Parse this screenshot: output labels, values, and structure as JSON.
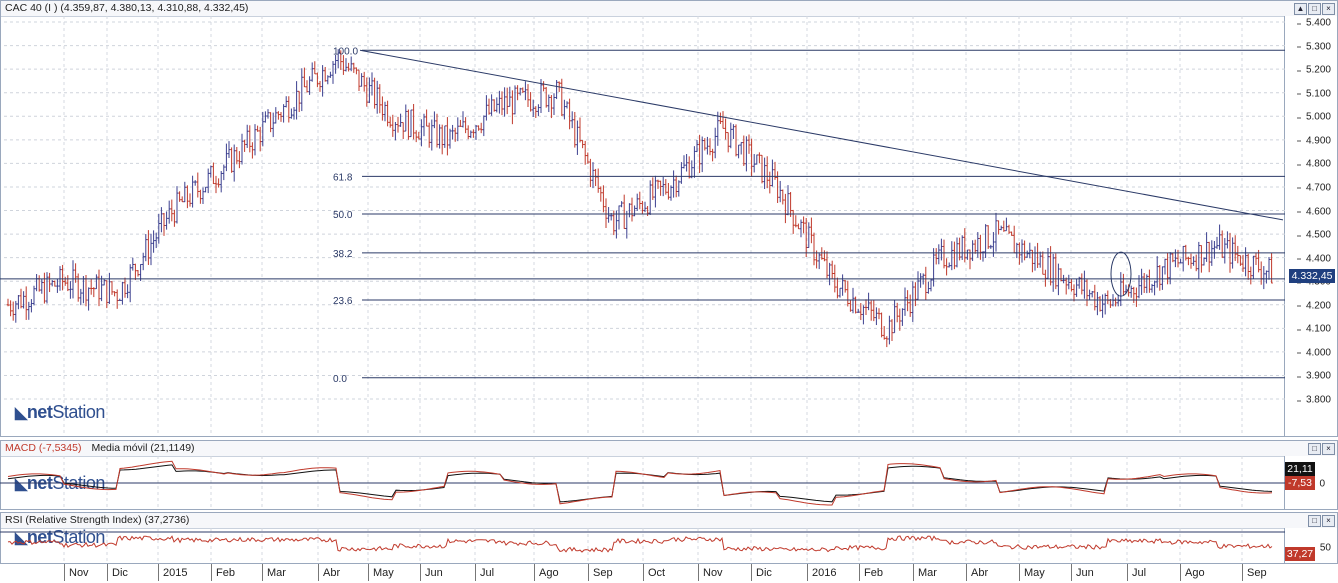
{
  "main": {
    "title": "CAC 40 (I ) (4.359,87, 4.380,13, 4.310,88, 4.332,45)",
    "y_ticks": [
      "5.400",
      "5.300",
      "5.200",
      "5.100",
      "5.000",
      "4.900",
      "4.800",
      "4.700",
      "4.600",
      "4.500",
      "4.400",
      "4.300",
      "4.200",
      "4.100",
      "4.000",
      "3.900",
      "3.800"
    ],
    "price_tag": "4.332,45",
    "fib_levels": [
      "100.0",
      "61.8",
      "50.0",
      "38.2",
      "23.6",
      "0.0"
    ],
    "ctrl_labels": [
      "▲",
      "□",
      "×"
    ]
  },
  "macd": {
    "title": "MACD (-7,5345)",
    "subtitle": "Media móvil (21,1149)",
    "tag_ma": "21,11",
    "tag_macd": "-7,53",
    "zero_label": "0",
    "ctrl_labels": [
      "□",
      "×"
    ]
  },
  "rsi": {
    "title": "RSI (Relative Strength Index) (37,2736)",
    "tag": "37,27",
    "level_label": "50",
    "ctrl_labels": [
      "□",
      "×"
    ]
  },
  "logo": {
    "brand": "net",
    "brand_light": "Station"
  },
  "x_labels": [
    "Nov",
    "Dic",
    "2015",
    "Feb",
    "Mar",
    "Abr",
    "May",
    "Jun",
    "Jul",
    "Ago",
    "Sep",
    "Oct",
    "Nov",
    "Dic",
    "2016",
    "Feb",
    "Mar",
    "Abr",
    "May",
    "Jun",
    "Jul",
    "Ago",
    "Sep"
  ],
  "colors": {
    "up": "#3b3f8f",
    "down": "#c0392b",
    "line": "#2b3a67",
    "tag_price": "#1f3f7f",
    "tag_ma": "#111111",
    "tag_macd": "#c0392b",
    "tag_rsi": "#c0392b"
  },
  "chart_data": {
    "type": "candlestick",
    "title": "CAC 40 (I ) (4.359,87, 4.380,13, 4.310,88, 4.332,45)",
    "ylim": [
      3700,
      5450
    ],
    "last": {
      "open": 4359.87,
      "high": 4380.13,
      "low": 4310.88,
      "close": 4332.45
    },
    "close_series_monthly": [
      {
        "x": "Oct 2014",
        "y": 4200
      },
      {
        "x": "Nov",
        "y": 4300
      },
      {
        "x": "Dic",
        "y": 4250
      },
      {
        "x": "2015",
        "y": 4600
      },
      {
        "x": "Feb",
        "y": 4800
      },
      {
        "x": "Mar",
        "y": 5030
      },
      {
        "x": "Abr",
        "y": 5250
      },
      {
        "x": "May",
        "y": 5000
      },
      {
        "x": "Jun",
        "y": 4900
      },
      {
        "x": "Jul",
        "y": 5050
      },
      {
        "x": "Ago",
        "y": 5100
      },
      {
        "x": "Sep",
        "y": 4550
      },
      {
        "x": "Oct",
        "y": 4700
      },
      {
        "x": "Nov",
        "y": 4950
      },
      {
        "x": "Dic",
        "y": 4700
      },
      {
        "x": "2016",
        "y": 4300
      },
      {
        "x": "Feb",
        "y": 4100
      },
      {
        "x": "Mar",
        "y": 4400
      },
      {
        "x": "Abr",
        "y": 4500
      },
      {
        "x": "May",
        "y": 4350
      },
      {
        "x": "Jun",
        "y": 4200
      },
      {
        "x": "Jul",
        "y": 4350
      },
      {
        "x": "Ago",
        "y": 4450
      },
      {
        "x": "Sep",
        "y": 4332.45
      }
    ],
    "fibonacci": {
      "high": 5280,
      "low": 3890,
      "levels": [
        {
          "label": "100.0",
          "value": 5280
        },
        {
          "label": "61.8",
          "value": 4745
        },
        {
          "label": "50.0",
          "value": 4585
        },
        {
          "label": "38.2",
          "value": 4420
        },
        {
          "label": "23.6",
          "value": 4220
        },
        {
          "label": "0.0",
          "value": 3890
        }
      ]
    },
    "horizontal_line": 4310,
    "trendline": {
      "from": {
        "x": "Abr 2015",
        "y": 5280
      },
      "to": {
        "x": "Sep 2016",
        "y": 4560
      }
    },
    "macd": {
      "macd": -7.53,
      "signal": 21.11
    },
    "rsi": {
      "value": 37.27,
      "level": 50
    }
  }
}
